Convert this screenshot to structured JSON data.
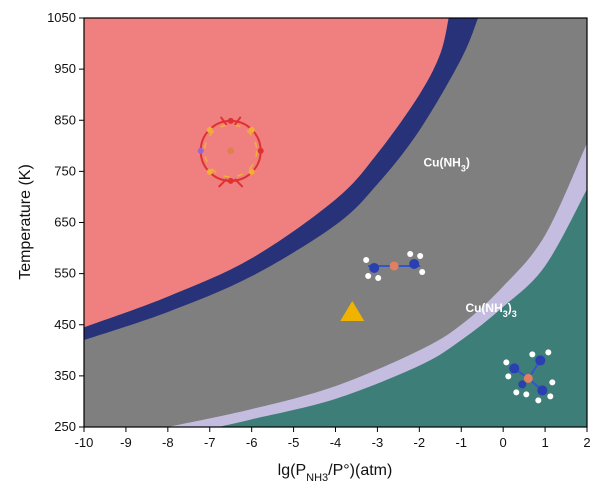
{
  "chart_data": {
    "type": "area",
    "title": "",
    "xlabel": {
      "prefix": "lg(P",
      "sub": "NH3",
      "suffix": "/P°)(atm)"
    },
    "ylabel": "Temperature (K)",
    "xlim": [
      -10,
      2
    ],
    "ylim": [
      250,
      1050
    ],
    "x_ticks": [
      -10,
      -9,
      -8,
      -7,
      -6,
      -5,
      -4,
      -3,
      -2,
      -1,
      0,
      1,
      2
    ],
    "y_ticks": [
      250,
      350,
      450,
      550,
      650,
      750,
      850,
      950,
      1050
    ],
    "grid": false,
    "colors": {
      "bare_cluster": "#f08080",
      "transition_upper": "#283278",
      "cu_nh3": "#7f7f7f",
      "transition_lower": "#c4bde0",
      "cu_nh3_3": "#3d7e78",
      "marker": "#f0b400"
    },
    "boundaries": [
      {
        "name": "upper_top",
        "x": [
          -10,
          -8,
          -6,
          -4,
          -3,
          -2,
          -1.5,
          -1.3
        ],
        "y": [
          445,
          505,
          580,
          695,
          785,
          900,
          980,
          1050
        ]
      },
      {
        "name": "upper_bottom",
        "x": [
          -10,
          -8,
          -6,
          -4,
          -3,
          -2,
          -1,
          -0.6
        ],
        "y": [
          420,
          475,
          545,
          645,
          725,
          830,
          970,
          1050
        ]
      },
      {
        "name": "lower_top",
        "x": [
          -8,
          -6,
          -4,
          -2,
          -1,
          0,
          1,
          2
        ],
        "y": [
          250,
          285,
          330,
          400,
          450,
          525,
          625,
          805
        ]
      },
      {
        "name": "lower_bottom",
        "x": [
          -6.8,
          -6,
          -4,
          -2,
          -1,
          0,
          1,
          2
        ],
        "y": [
          250,
          265,
          305,
          370,
          420,
          485,
          565,
          715
        ]
      }
    ],
    "region_labels": [
      {
        "text": "Cu(NH",
        "sub": "3",
        "suffix": ")",
        "x": -1.9,
        "y": 760
      },
      {
        "text": "Cu(NH",
        "sub": "3",
        "suffix": ")",
        "sub2": "3",
        "x": -0.9,
        "y": 475
      }
    ],
    "marker": {
      "shape": "triangle",
      "x": -3.6,
      "y": 475
    },
    "insets": [
      {
        "name": "ring-cluster-structure",
        "x": -6.5,
        "y": 790
      },
      {
        "name": "linear-molecule-structure",
        "x": -2.6,
        "y": 565
      },
      {
        "name": "tetrahedral-molecule-structure",
        "x": 0.6,
        "y": 345
      }
    ]
  }
}
